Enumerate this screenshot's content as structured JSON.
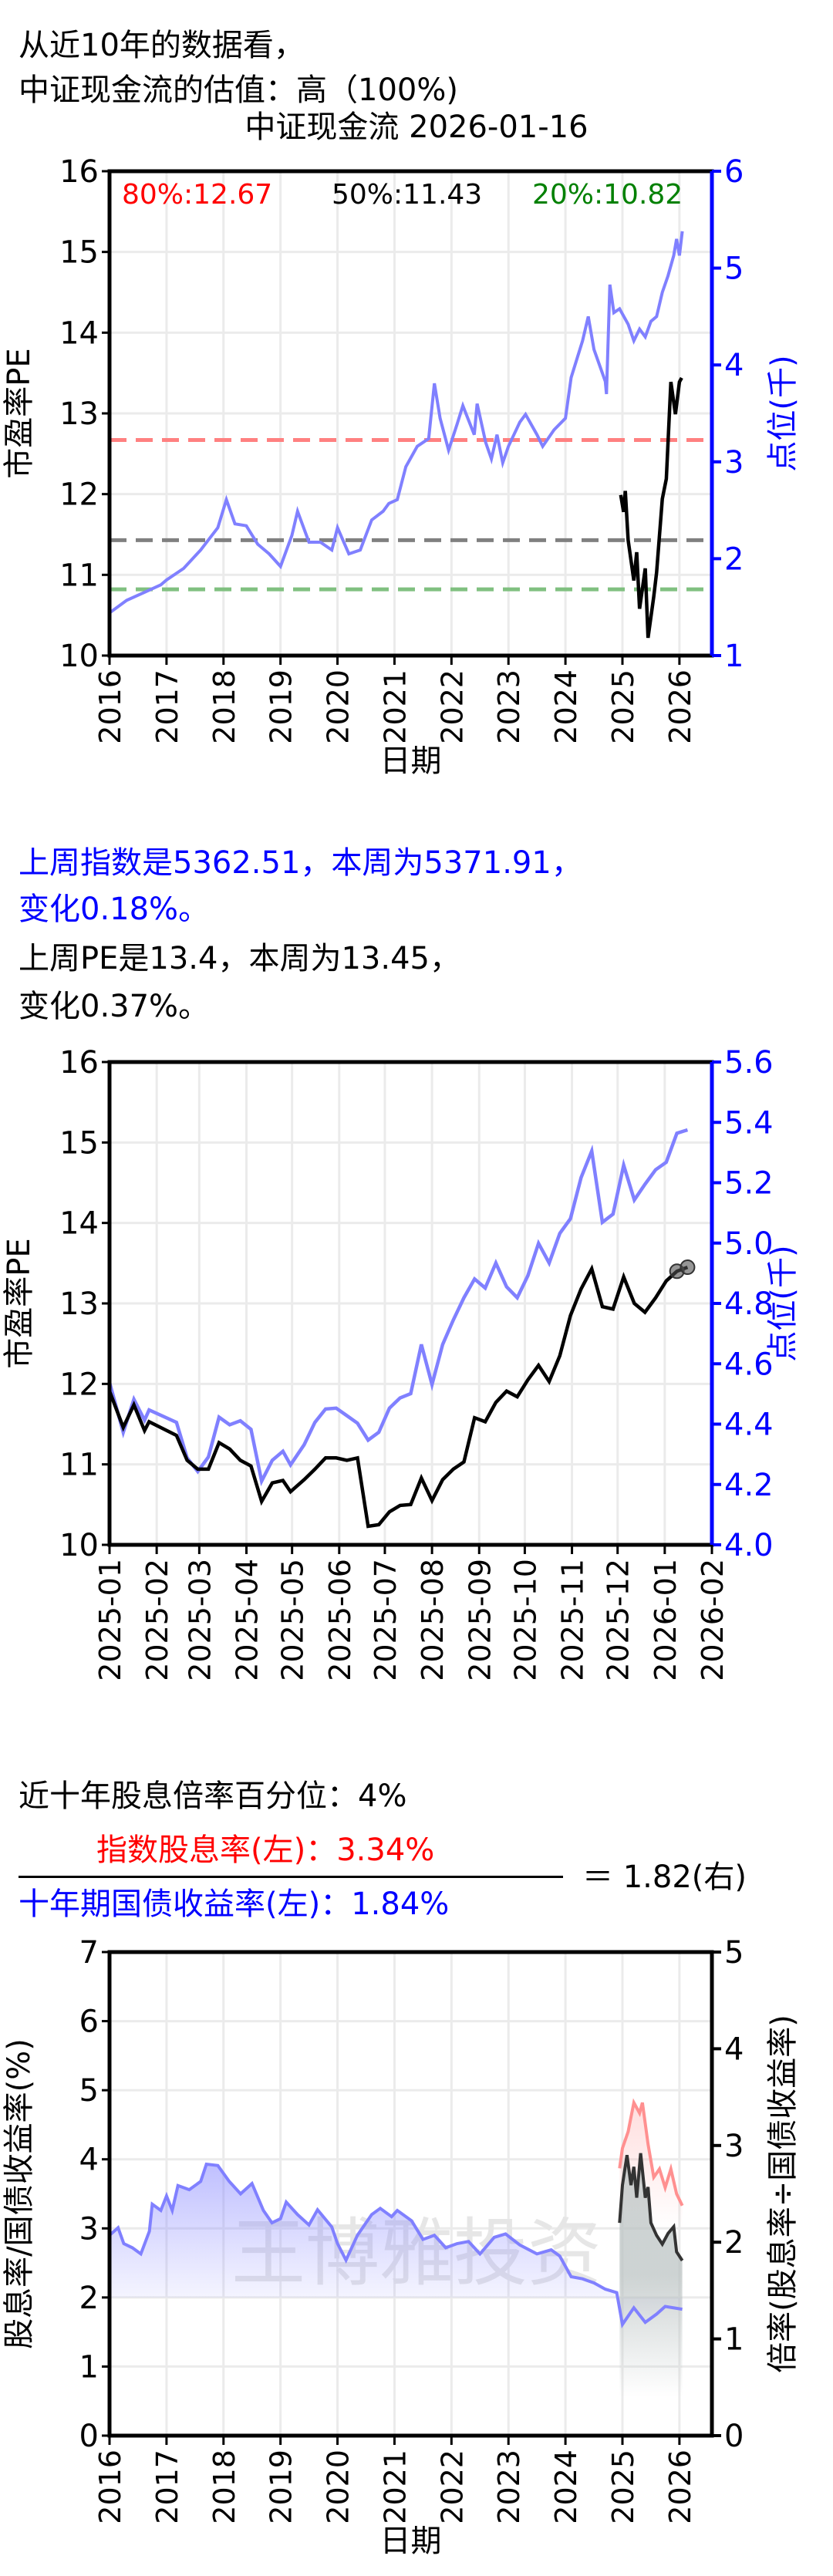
{
  "header": {
    "line1": "从近10年的数据看，",
    "line2": "中证现金流的估值：高（100%)"
  },
  "weekly": {
    "index_line1": "上周指数是5362.51，本周为5371.91，",
    "index_line2": "变化0.18%。",
    "pe_line1": "上周PE是13.4，本周为13.45，",
    "pe_line2": "变化0.37%。"
  },
  "dividend": {
    "percentile": "近十年股息倍率百分位：4%",
    "numerator": "指数股息率(左)：3.34%",
    "denominator": "十年期国债收益率(左)：1.84%",
    "result": "＝ 1.82(右)"
  },
  "colors": {
    "pe": "#000000",
    "index": "#8080ff",
    "p80": "#ff8080",
    "p50": "#808080",
    "p20": "#80c080",
    "dividend": "#ff9090",
    "bond": "#8080ff",
    "ratio": "#333333",
    "right_axis": "#0000ff"
  },
  "chart_data": [
    {
      "type": "line",
      "title": "中证现金流  2026-01-16",
      "xlabel": "日期",
      "ylabel": "市盈率PE",
      "ylabel_right": "点位(千)",
      "xlim": [
        2016,
        2026.57
      ],
      "ylim": [
        10,
        16
      ],
      "ylim_right": [
        1,
        6
      ],
      "xticks": [
        "2016",
        "2017",
        "2018",
        "2019",
        "2020",
        "2021",
        "2022",
        "2023",
        "2024",
        "2025",
        "2026"
      ],
      "yticks": [
        "10",
        "11",
        "12",
        "13",
        "14",
        "15",
        "16"
      ],
      "yticks_right": [
        "1",
        "2",
        "3",
        "4",
        "5",
        "6"
      ],
      "percentiles": [
        {
          "label": "80%:12.67",
          "value": 12.67,
          "color": "#ff0000"
        },
        {
          "label": "50%:11.43",
          "value": 11.43,
          "color": "#000000"
        },
        {
          "label": "20%:10.82",
          "value": 10.82,
          "color": "#008000"
        }
      ],
      "series": [
        {
          "name": "点位(千)",
          "axis": "right",
          "x": [
            2016.0,
            2016.3,
            2016.6,
            2016.9,
            2017.0,
            2017.3,
            2017.6,
            2017.9,
            2018.05,
            2018.2,
            2018.4,
            2018.6,
            2018.8,
            2019.0,
            2019.2,
            2019.3,
            2019.5,
            2019.7,
            2019.9,
            2020.0,
            2020.2,
            2020.4,
            2020.6,
            2020.8,
            2020.9,
            2021.05,
            2021.2,
            2021.4,
            2021.6,
            2021.7,
            2021.8,
            2021.95,
            2022.1,
            2022.2,
            2022.4,
            2022.45,
            2022.6,
            2022.7,
            2022.8,
            2022.9,
            2023.0,
            2023.2,
            2023.3,
            2023.5,
            2023.6,
            2023.8,
            2024.0,
            2024.1,
            2024.3,
            2024.4,
            2024.5,
            2024.7,
            2024.72,
            2024.78,
            2024.85,
            2024.95,
            2025.1,
            2025.2,
            2025.3,
            2025.4,
            2025.5,
            2025.6,
            2025.7,
            2025.8,
            2025.9,
            2025.95,
            2026.0,
            2026.05
          ],
          "y": [
            1.44,
            1.57,
            1.65,
            1.73,
            1.78,
            1.9,
            2.09,
            2.32,
            2.61,
            2.36,
            2.34,
            2.15,
            2.05,
            1.92,
            2.24,
            2.49,
            2.17,
            2.17,
            2.09,
            2.32,
            2.05,
            2.09,
            2.4,
            2.49,
            2.57,
            2.61,
            2.95,
            3.16,
            3.24,
            3.81,
            3.45,
            3.12,
            3.39,
            3.58,
            3.28,
            3.6,
            3.2,
            3.03,
            3.28,
            2.99,
            3.16,
            3.41,
            3.49,
            3.28,
            3.16,
            3.33,
            3.45,
            3.87,
            4.25,
            4.5,
            4.16,
            3.83,
            3.7,
            4.83,
            4.54,
            4.58,
            4.42,
            4.25,
            4.37,
            4.29,
            4.45,
            4.5,
            4.75,
            4.92,
            5.13,
            5.3,
            5.13,
            5.38
          ]
        },
        {
          "name": "市盈率PE",
          "axis": "left",
          "x": [
            2024.97,
            2025.02,
            2025.05,
            2025.1,
            2025.2,
            2025.25,
            2025.3,
            2025.4,
            2025.45,
            2025.55,
            2025.6,
            2025.7,
            2025.77,
            2025.85,
            2025.93,
            2026.0,
            2026.04
          ],
          "y": [
            11.99,
            11.78,
            12.04,
            11.43,
            10.93,
            11.28,
            10.58,
            11.08,
            10.22,
            10.73,
            11.03,
            11.94,
            12.19,
            13.39,
            12.99,
            13.39,
            13.44
          ]
        }
      ]
    },
    {
      "type": "line",
      "xlabel": "日期",
      "ylabel": "市盈率PE",
      "ylabel_right": "点位(千)",
      "x_start_date": "2025-01-01",
      "xlim_days": [
        0,
        396
      ],
      "ylim": [
        10,
        16
      ],
      "ylim_right": [
        4.0,
        5.6
      ],
      "xticks": [
        "2025-01",
        "2025-02",
        "2025-03",
        "2025-04",
        "2025-05",
        "2025-06",
        "2025-07",
        "2025-08",
        "2025-09",
        "2025-10",
        "2025-11",
        "2025-12",
        "2026-01",
        "2026-02"
      ],
      "xtick_days": [
        0,
        31,
        59,
        90,
        120,
        151,
        181,
        212,
        243,
        273,
        304,
        334,
        365,
        396
      ],
      "yticks": [
        "10",
        "11",
        "12",
        "13",
        "14",
        "15",
        "16"
      ],
      "yticks_right": [
        "4.0",
        "4.2",
        "4.4",
        "4.6",
        "4.8",
        "5.0",
        "5.2",
        "5.4",
        "5.6"
      ],
      "days": [
        0,
        9,
        16,
        23,
        26,
        44,
        51,
        58,
        65,
        72,
        79,
        86,
        93,
        100,
        107,
        114,
        119,
        128,
        135,
        142,
        149,
        156,
        163,
        170,
        177,
        184,
        191,
        198,
        205,
        212,
        219,
        226,
        233,
        240,
        247,
        254,
        261,
        268,
        275,
        282,
        289,
        296,
        303,
        310,
        317,
        324,
        331,
        338,
        345,
        352,
        359,
        366,
        373,
        380
      ],
      "series": [
        {
          "name": "点位(千)",
          "axis": "right",
          "y": [
            4.538,
            4.373,
            4.482,
            4.413,
            4.447,
            4.406,
            4.288,
            4.243,
            4.291,
            4.423,
            4.398,
            4.411,
            4.383,
            4.211,
            4.28,
            4.31,
            4.265,
            4.332,
            4.406,
            4.45,
            4.453,
            4.428,
            4.403,
            4.347,
            4.373,
            4.453,
            4.487,
            4.501,
            4.664,
            4.531,
            4.664,
            4.745,
            4.819,
            4.881,
            4.851,
            4.934,
            4.855,
            4.819,
            4.892,
            4.999,
            4.934,
            5.032,
            5.081,
            5.217,
            5.305,
            5.069,
            5.096,
            5.258,
            5.143,
            5.195,
            5.243,
            5.268,
            5.364,
            5.375
          ]
        },
        {
          "name": "市盈率PE",
          "axis": "left",
          "y": [
            11.91,
            11.46,
            11.74,
            11.42,
            11.53,
            11.36,
            11.05,
            10.94,
            10.94,
            11.27,
            11.19,
            11.05,
            10.98,
            10.54,
            10.77,
            10.8,
            10.66,
            10.81,
            10.94,
            11.08,
            11.08,
            11.05,
            11.08,
            10.23,
            10.25,
            10.41,
            10.49,
            10.5,
            10.83,
            10.55,
            10.81,
            10.94,
            11.03,
            11.58,
            11.53,
            11.77,
            11.91,
            11.84,
            12.05,
            12.23,
            12.03,
            12.35,
            12.85,
            13.18,
            13.43,
            12.96,
            12.93,
            13.33,
            13.0,
            12.89,
            13.07,
            13.28,
            13.4,
            13.45
          ]
        }
      ],
      "markers": [
        {
          "day": 373,
          "y": 13.4
        },
        {
          "day": 380,
          "y": 13.45
        }
      ]
    },
    {
      "type": "area",
      "xlabel": "日期",
      "ylabel": "股息率/国债收益率(%)",
      "ylabel_right": "倍率(股息率÷国债收益率)",
      "watermark": "王博雅投资",
      "xlim": [
        2016,
        2026.57
      ],
      "ylim": [
        0,
        7
      ],
      "ylim_right": [
        0,
        5
      ],
      "xticks": [
        "2016",
        "2017",
        "2018",
        "2019",
        "2020",
        "2021",
        "2022",
        "2023",
        "2024",
        "2025",
        "2026"
      ],
      "yticks": [
        "0",
        "1",
        "2",
        "3",
        "4",
        "5",
        "6",
        "7"
      ],
      "yticks_right": [
        "0",
        "1",
        "2",
        "3",
        "4",
        "5"
      ],
      "series": [
        {
          "name": "十年期国债收益率",
          "axis": "left",
          "x": [
            2016.0,
            2016.15,
            2016.25,
            2016.4,
            2016.55,
            2016.7,
            2016.75,
            2016.9,
            2017.0,
            2017.1,
            2017.2,
            2017.4,
            2017.6,
            2017.7,
            2017.9,
            2018.1,
            2018.3,
            2018.5,
            2018.7,
            2018.85,
            2019.0,
            2019.1,
            2019.3,
            2019.5,
            2019.65,
            2019.9,
            2020.0,
            2020.15,
            2020.35,
            2020.6,
            2020.75,
            2020.95,
            2021.05,
            2021.3,
            2021.5,
            2021.7,
            2021.9,
            2022.1,
            2022.3,
            2022.5,
            2022.75,
            2022.95,
            2023.2,
            2023.5,
            2023.75,
            2023.9,
            2024.1,
            2024.3,
            2024.5,
            2024.7,
            2024.9,
            2025.0,
            2025.2,
            2025.4,
            2025.6,
            2025.75,
            2026.05
          ],
          "y": [
            2.9,
            3.01,
            2.78,
            2.72,
            2.63,
            2.96,
            3.35,
            3.26,
            3.47,
            3.26,
            3.62,
            3.56,
            3.68,
            3.93,
            3.91,
            3.68,
            3.5,
            3.65,
            3.26,
            3.08,
            3.14,
            3.38,
            3.2,
            3.05,
            3.27,
            3.02,
            2.78,
            2.54,
            2.9,
            3.2,
            3.29,
            3.17,
            3.26,
            3.11,
            2.84,
            2.9,
            2.72,
            2.78,
            2.81,
            2.63,
            2.87,
            2.92,
            2.76,
            2.63,
            2.69,
            2.6,
            2.3,
            2.27,
            2.21,
            2.12,
            2.07,
            1.61,
            1.85,
            1.64,
            1.76,
            1.87,
            1.83
          ]
        },
        {
          "name": "指数股息率",
          "axis": "left",
          "x": [
            2024.95,
            2025.0,
            2025.1,
            2025.2,
            2025.3,
            2025.35,
            2025.45,
            2025.55,
            2025.65,
            2025.75,
            2025.85,
            2025.95,
            2026.05
          ],
          "y": [
            3.87,
            4.16,
            4.4,
            4.82,
            4.67,
            4.82,
            4.22,
            3.74,
            3.86,
            3.59,
            3.86,
            3.5,
            3.33
          ]
        },
        {
          "name": "倍率",
          "axis": "right",
          "x": [
            2024.95,
            2025.0,
            2025.08,
            2025.15,
            2025.2,
            2025.25,
            2025.32,
            2025.4,
            2025.45,
            2025.5,
            2025.6,
            2025.7,
            2025.8,
            2025.9,
            2025.95,
            2026.05
          ],
          "y": [
            2.2,
            2.59,
            2.9,
            2.59,
            2.78,
            2.46,
            2.92,
            2.46,
            2.57,
            2.2,
            2.07,
            1.98,
            2.09,
            2.16,
            1.9,
            1.81
          ]
        }
      ]
    }
  ]
}
